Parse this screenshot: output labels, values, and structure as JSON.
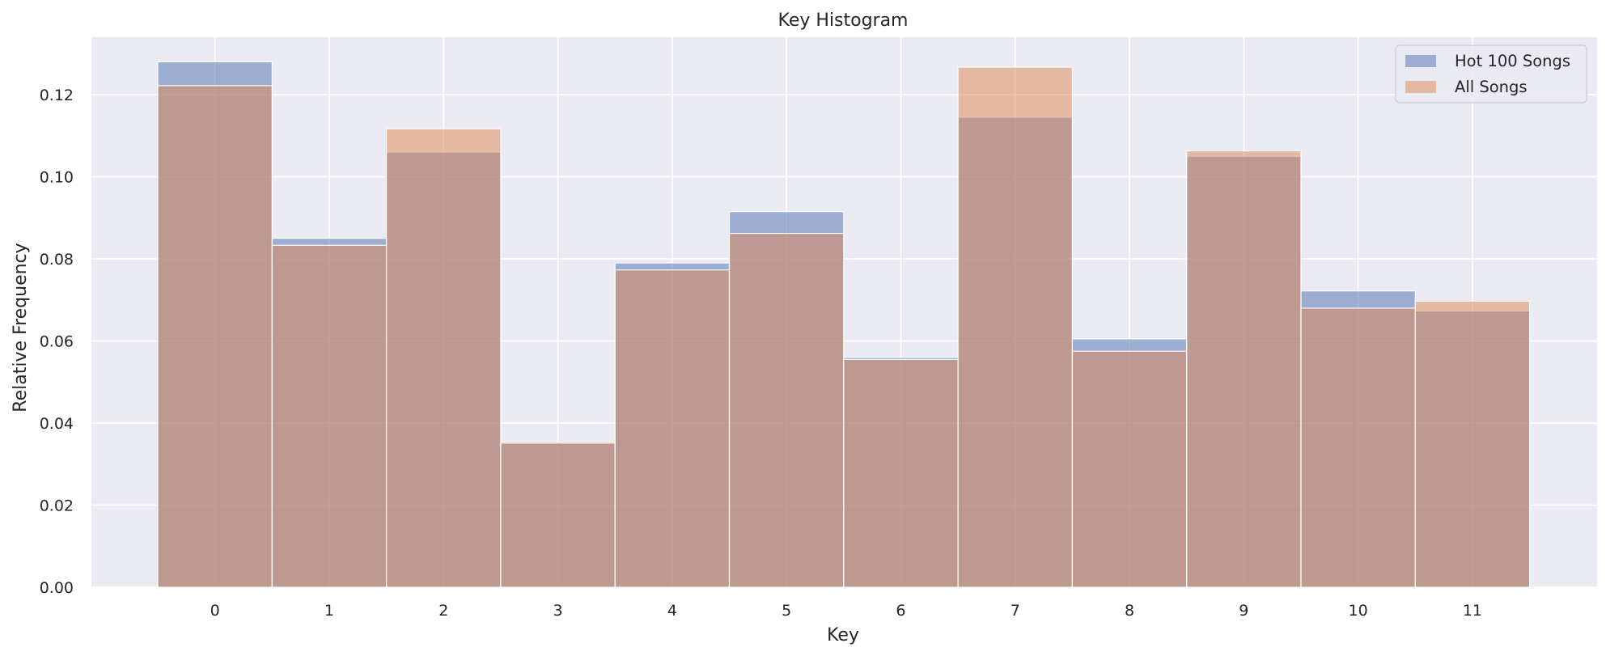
{
  "chart_data": {
    "type": "bar",
    "title": "Key Histogram",
    "xlabel": "Key",
    "ylabel": "Relative Frequency",
    "categories": [
      0,
      1,
      2,
      3,
      4,
      5,
      6,
      7,
      8,
      9,
      10,
      11
    ],
    "series": [
      {
        "name": "Hot 100 Songs",
        "color": "#4c72b0",
        "values": [
          0.128,
          0.085,
          0.106,
          0.035,
          0.079,
          0.0915,
          0.056,
          0.1145,
          0.0605,
          0.105,
          0.0722,
          0.0673
        ]
      },
      {
        "name": "All Songs",
        "color": "#dd8452",
        "values": [
          0.1222,
          0.0833,
          0.1117,
          0.0353,
          0.0773,
          0.0862,
          0.0555,
          0.1267,
          0.0575,
          0.1063,
          0.068,
          0.0697
        ]
      }
    ],
    "ylim": [
      0,
      0.134
    ],
    "yticks": [
      "0.00",
      "0.02",
      "0.04",
      "0.06",
      "0.08",
      "0.10",
      "0.12"
    ],
    "xticks": [
      "0",
      "1",
      "2",
      "3",
      "4",
      "5",
      "6",
      "7",
      "8",
      "9",
      "10",
      "11"
    ],
    "grid": true,
    "legend": "top-right",
    "background": "#eaeaf2",
    "bar_alpha": 0.5
  }
}
